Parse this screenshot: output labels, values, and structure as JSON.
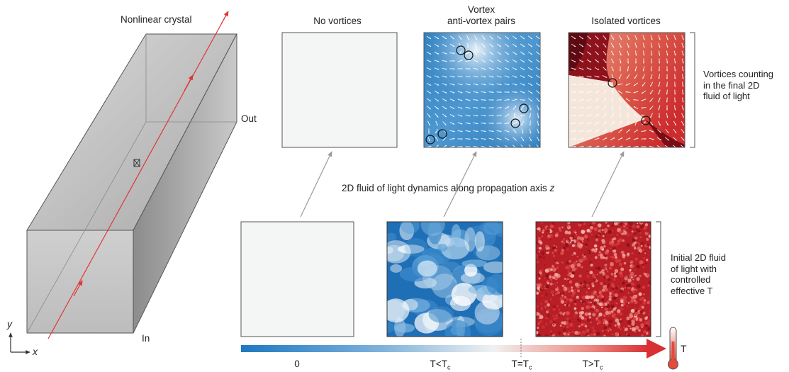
{
  "crystal": {
    "label": "Nonlinear crystal",
    "out_label": "Out",
    "in_label": "In"
  },
  "axes": {
    "y": "y",
    "x": "x"
  },
  "columns": [
    {
      "final_title_line1": "No vortices",
      "final_title_line2": ""
    },
    {
      "final_title_line1": "Vortex",
      "final_title_line2": "anti-vortex pairs"
    },
    {
      "final_title_line1": "Isolated vortices",
      "final_title_line2": ""
    }
  ],
  "dynamics_label": {
    "text": "2D fluid of light dynamics along propagation axis",
    "axis": "z"
  },
  "side_notes": {
    "final": [
      "Vortices counting",
      "in the final 2D",
      "fluid of light"
    ],
    "initial": [
      "Initial 2D fluid",
      "of light with",
      "controlled",
      "effective T"
    ]
  },
  "temperature_bar": {
    "ticks": [
      {
        "main": "0",
        "sub": ""
      },
      {
        "main": "T<T",
        "sub": "c"
      },
      {
        "main": "T=T",
        "sub": "c"
      },
      {
        "main": "T>T",
        "sub": "c"
      }
    ],
    "thermometer_label": "T"
  },
  "colors": {
    "arrow_red": "#e03535",
    "blue_dark": "#0b5ea8",
    "blue_mid": "#4a93cf",
    "red_dark": "#8a0f1a",
    "red_mid": "#d4373a",
    "bar_start": "#1f78c1",
    "bar_mid": "#f2f2f2",
    "bar_end": "#d93033"
  }
}
